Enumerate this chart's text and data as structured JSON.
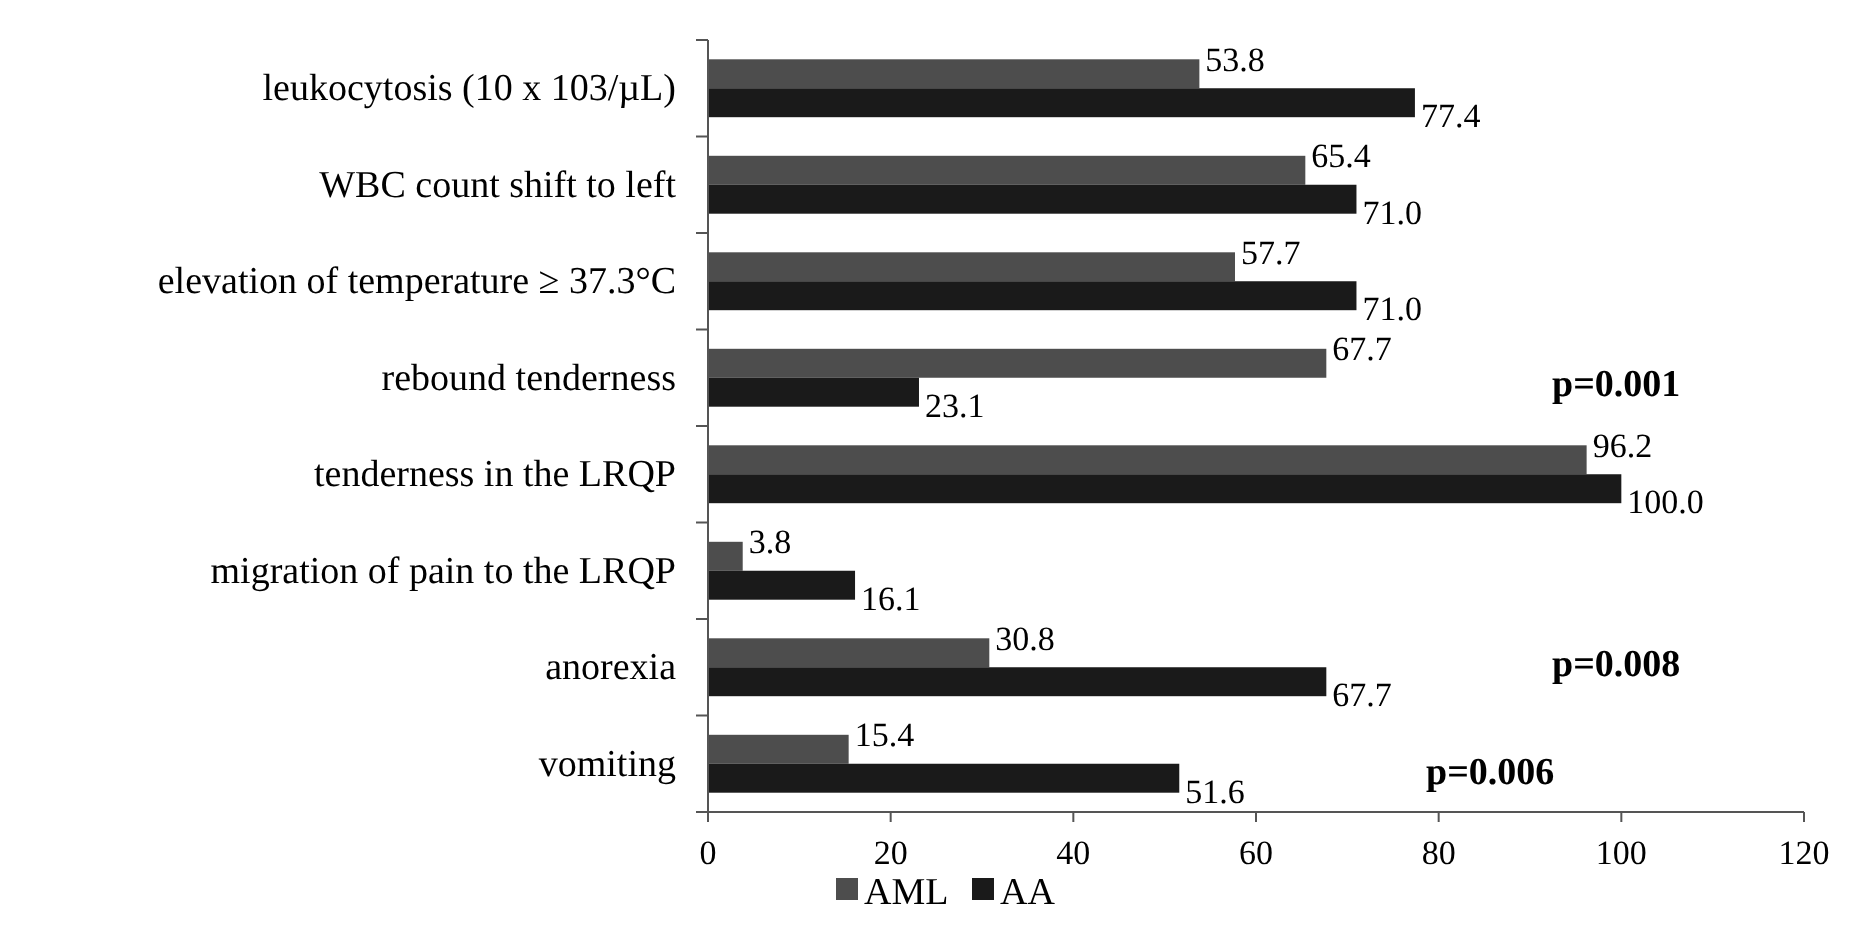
{
  "chart_data": {
    "type": "bar",
    "orientation": "horizontal",
    "categories": [
      "leukocytosis (10 x 103/µL)",
      "WBC count shift to left",
      "elevation of temperature ≥ 37.3°C",
      "rebound tenderness",
      "tenderness in the LRQP",
      "migration of pain to the LRQP",
      "anorexia",
      "vomiting"
    ],
    "series": [
      {
        "name": "AML",
        "color": "#4d4d4d",
        "values": [
          53.8,
          65.4,
          57.7,
          67.7,
          96.2,
          3.8,
          30.8,
          15.4
        ]
      },
      {
        "name": "AA",
        "color": "#1a1a1a",
        "values": [
          77.4,
          71.0,
          71.0,
          23.1,
          100.0,
          16.1,
          67.7,
          51.6
        ]
      }
    ],
    "value_labels": [
      [
        "53.8",
        "65.4",
        "57.7",
        "67.7",
        "96.2",
        "3.8",
        "30.8",
        "15.4"
      ],
      [
        "77.4",
        "71.0",
        "71.0",
        "23.1",
        "100.0",
        "16.1",
        "67.7",
        "51.6"
      ]
    ],
    "xlim": [
      0,
      120
    ],
    "xticks": [
      0,
      20,
      40,
      60,
      80,
      100,
      120
    ],
    "annotations": [
      "p=0.001",
      "p=0.008",
      "p=0.006"
    ],
    "legend": "bottom",
    "grid": false
  }
}
